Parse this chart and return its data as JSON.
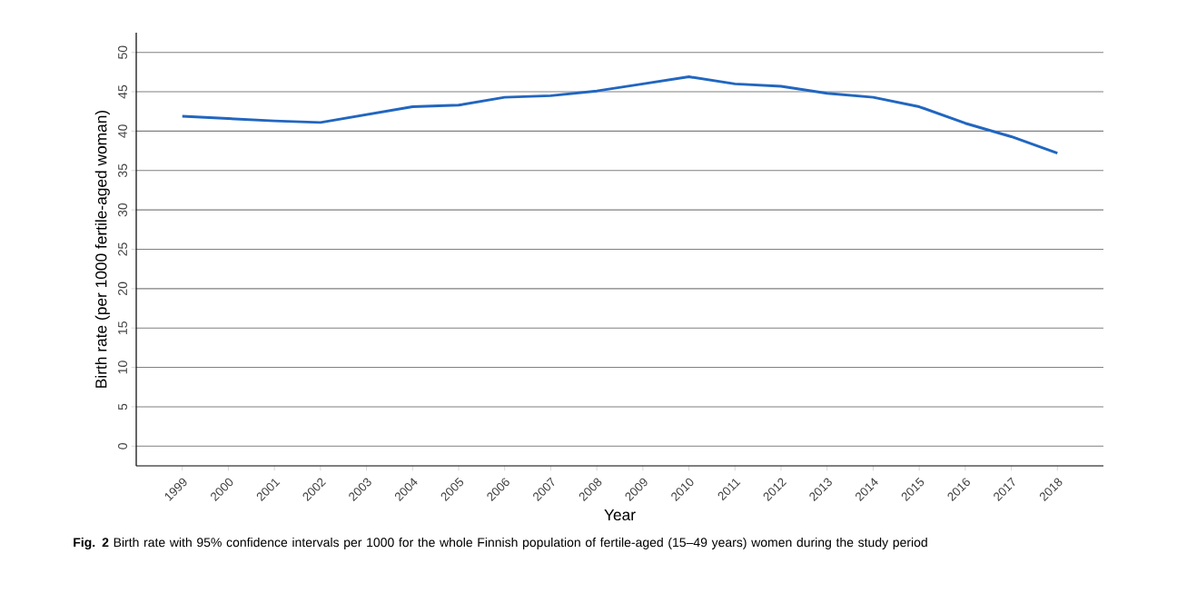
{
  "chart_data": {
    "type": "line",
    "xlabel": "Year",
    "ylabel": "Birth rate (per 1000 fertile-aged woman)",
    "categories": [
      "1999",
      "2000",
      "2001",
      "2002",
      "2003",
      "2004",
      "2005",
      "2006",
      "2007",
      "2008",
      "2009",
      "2010",
      "2011",
      "2012",
      "2013",
      "2014",
      "2015",
      "2016",
      "2017",
      "2018"
    ],
    "series": [
      {
        "color": "#2166c0",
        "values": [
          41.9,
          41.6,
          41.3,
          41.1,
          42.1,
          43.1,
          43.3,
          44.3,
          44.5,
          45.1,
          46.0,
          46.9,
          46.0,
          45.7,
          44.8,
          44.3,
          43.1,
          41.0,
          39.3,
          37.2
        ]
      }
    ],
    "ylim": [
      -2.5,
      52.5
    ],
    "yticks": [
      0,
      5,
      10,
      15,
      20,
      25,
      30,
      35,
      40,
      45,
      50
    ],
    "grid": "y",
    "marker": "none",
    "line_style": "solid",
    "annotations": [
      "**Fig. 2** Birth rate with 95% confidence intervals per 1000 for the whole Finnish population of fertile-aged (15–49 years) women during the study period"
    ]
  }
}
